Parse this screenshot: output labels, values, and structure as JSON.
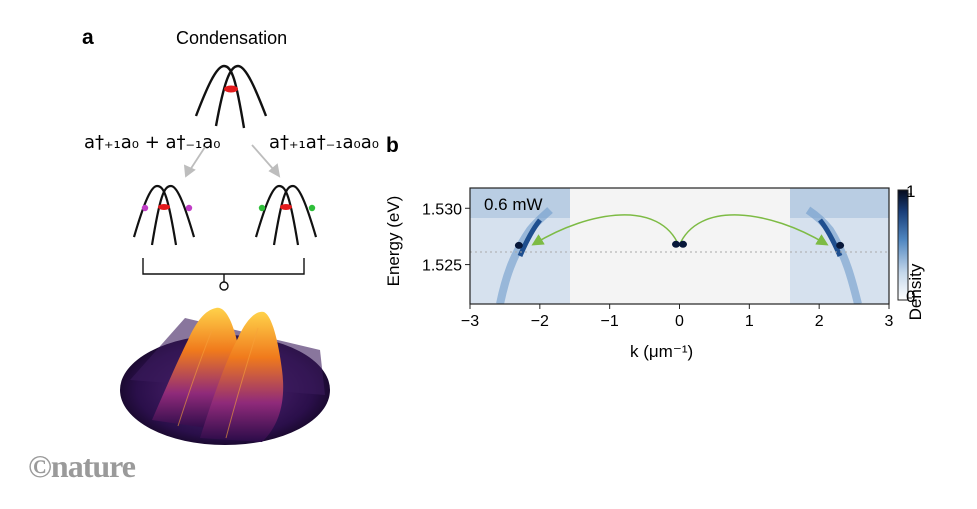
{
  "panel_a": {
    "label": "a",
    "title": "Condensation",
    "left_equation": "a†₊₁a₀ + a†₋₁a₀",
    "right_equation": "a†₊₁a†₋₁a₀a₀"
  },
  "panel_b": {
    "label": "b",
    "power_label": "0.6 mW",
    "ylabel": "Energy (eV)",
    "xlabel": "k (μm⁻¹)",
    "colorbar_label": "Density",
    "colorbar_max": "1",
    "colorbar_min": "0",
    "xticks": [
      "−3",
      "−2",
      "−1",
      "0",
      "1",
      "2",
      "3"
    ],
    "yticks": [
      "1.530",
      "1.525"
    ]
  },
  "watermark": "©nature",
  "chart_data": {
    "type": "heatmap",
    "xlabel": "k (μm⁻¹)",
    "ylabel": "Energy (eV)",
    "xlim": [
      -3,
      3
    ],
    "ylim": [
      1.5215,
      1.5318
    ],
    "annotation": "0.6 mW",
    "colorbar": {
      "label": "Density",
      "range": [
        0,
        1
      ]
    },
    "features": [
      {
        "k": -2.3,
        "E": 1.5267,
        "density": 1
      },
      {
        "k": -0.05,
        "E": 1.5268,
        "density": 1
      },
      {
        "k": 0.05,
        "E": 1.5268,
        "density": 1
      },
      {
        "k": 2.3,
        "E": 1.5267,
        "density": 1
      }
    ],
    "colors": {
      "high": "#08183a",
      "mid": "#2f6bb0",
      "low": "#f4f4f4",
      "arrow": "#7dbb44"
    }
  }
}
